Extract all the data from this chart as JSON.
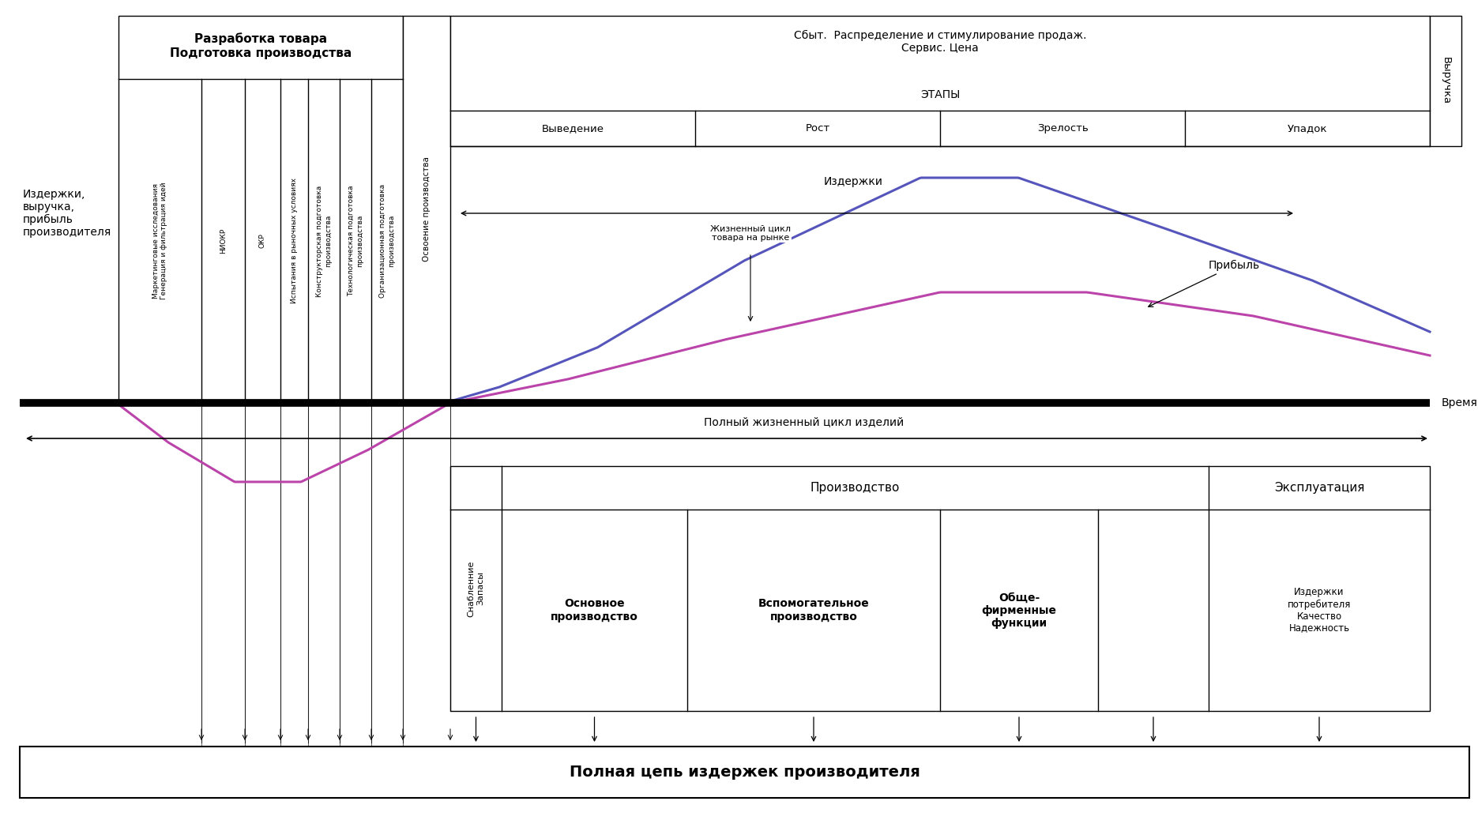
{
  "title_top_left": "Издержки,\nвыручка,\nприбыль\nпроизводителя",
  "title_right": "Выручка",
  "title_dev_box": "Разработка товара\nПодготовка производства",
  "title_sbt_box": "Сбыт.  Распределение и стимулирование продаж.\nСервис. Цена",
  "etapy_label": "ЭТАПЫ",
  "stages": [
    "Выведение",
    "Рост",
    "Зрелость",
    "Упадок"
  ],
  "izderjki_label": "Издержки",
  "pribyl_label": "Прибыль",
  "jizn_cikl_label": "Жизненный цикл\nтовара на рынке",
  "vremya_label": "Время",
  "polny_cikl_label": "Полный жизненный цикл изделий",
  "polnaya_cep_label": "Полная цепь издержек производителя",
  "col_headers_dev": [
    "Маркетинговые исследования\nГенерация и фильтрация идей",
    "НИОКР",
    "ОКР",
    "Испытания в рыночных условиях",
    "Конструкторская подготовка\nпроизводства",
    "Технологическая подготовка\nпроизводства",
    "Организационная подготовка\nпроизводства"
  ],
  "col_header_osvoeniye": "Освоение производства",
  "bottom_table": {
    "col1_header": "Снабленние\nЗапасы",
    "col2_header": "Производство",
    "col3_header": "Эксплуатация",
    "col2a": "Основное\nпроизводство",
    "col2b": "Вспомогательное\nпроизводство",
    "col2c": "Обще-\nфирменные\nфункции",
    "col3_content": "Издержки\nпотребителя\nКачество\nНадежность"
  },
  "bg_color": "#ffffff",
  "curve_costs_color": "#5555bb",
  "curve_profit_color": "#bb44aa"
}
